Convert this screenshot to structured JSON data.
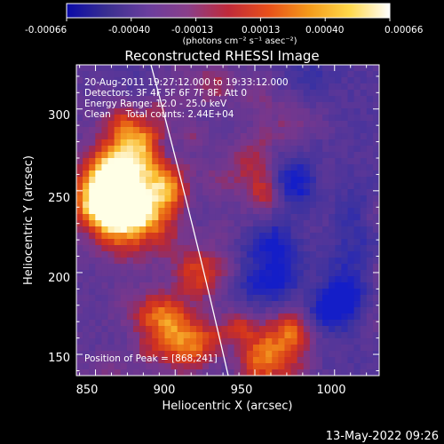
{
  "colorbar": {
    "ticks": [
      "-0.00066",
      "-0.00040",
      "-0.00013",
      "0.00013",
      "0.00040",
      "0.00066"
    ],
    "units_label": "(photons cm⁻² s⁻¹ asec⁻²)",
    "stops": [
      "#0a0aa8",
      "#3a2f90",
      "#6a3e9e",
      "#8a3f8a",
      "#c02a3a",
      "#e8501a",
      "#f49a1a",
      "#ffd84a",
      "#ffffff"
    ]
  },
  "plot": {
    "title": "Reconstructed RHESSI Image",
    "xlabel": "Heliocentric X (arcsec)",
    "ylabel": "Heliocentric Y (arcsec)",
    "xlim": [
      838,
      1028
    ],
    "ylim": [
      137,
      327
    ],
    "xticks": [
      "850",
      "900",
      "950",
      "1000"
    ],
    "yticks": [
      "150",
      "200",
      "250",
      "300"
    ],
    "info_lines": [
      "20-Aug-2011 19:27:12.000 to 19:33:12.000",
      "Detectors: 3F 4F 5F 6F 7F 8F, Att 0",
      "Energy Range: 12.0 - 25.0 keV",
      "Clean     Total counts: 2.44E+04"
    ],
    "peak_label": "Position of Peak = [868,241]",
    "peak": [
      868,
      241
    ]
  },
  "footer": {
    "timestamp": "13-May-2022 09:26"
  }
}
